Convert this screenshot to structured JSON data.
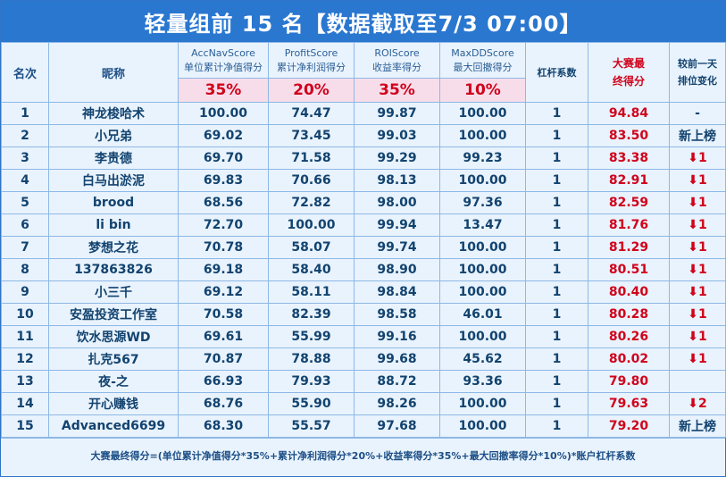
{
  "title": "轻量组前 15 名【数据截取至7/3 07:00】",
  "headers": {
    "rank": "名次",
    "nickname": "昵称",
    "acc_en": "AccNavScore",
    "acc_cn": "单位累计净值得分",
    "acc_pct": "35%",
    "profit_en": "ProfitScore",
    "profit_cn": "累计净利润得分",
    "profit_pct": "20%",
    "roi_en": "ROIScore",
    "roi_cn": "收益率得分",
    "roi_pct": "35%",
    "mdd_en": "MaxDDScore",
    "mdd_cn": "最大回撤得分",
    "mdd_pct": "10%",
    "leverage": "杠杆系数",
    "final_line1": "大赛最",
    "final_line2": "终得分",
    "change_line1": "较前一天",
    "change_line2": "排位变化"
  },
  "rows": [
    {
      "rank": "1",
      "name": "神龙梭哈术",
      "acc": "100.00",
      "profit": "74.47",
      "roi": "99.87",
      "mdd": "100.00",
      "lev": "1",
      "final": "94.84",
      "change": "-",
      "change_type": "none"
    },
    {
      "rank": "2",
      "name": "小兄弟",
      "acc": "69.02",
      "profit": "73.45",
      "roi": "99.03",
      "mdd": "100.00",
      "lev": "1",
      "final": "83.50",
      "change": "新上榜",
      "change_type": "new"
    },
    {
      "rank": "3",
      "name": "李贵德",
      "acc": "69.70",
      "profit": "71.58",
      "roi": "99.29",
      "mdd": "99.23",
      "lev": "1",
      "final": "83.38",
      "change": "⬇1",
      "change_type": "down"
    },
    {
      "rank": "4",
      "name": "白马出淤泥",
      "acc": "69.83",
      "profit": "70.66",
      "roi": "98.13",
      "mdd": "100.00",
      "lev": "1",
      "final": "82.91",
      "change": "⬇1",
      "change_type": "down"
    },
    {
      "rank": "5",
      "name": "brood",
      "acc": "68.56",
      "profit": "72.82",
      "roi": "98.00",
      "mdd": "97.36",
      "lev": "1",
      "final": "82.59",
      "change": "⬇1",
      "change_type": "down"
    },
    {
      "rank": "6",
      "name": "li bin",
      "acc": "72.70",
      "profit": "100.00",
      "roi": "99.94",
      "mdd": "13.47",
      "lev": "1",
      "final": "81.76",
      "change": "⬇1",
      "change_type": "down"
    },
    {
      "rank": "7",
      "name": "梦想之花",
      "acc": "70.78",
      "profit": "58.07",
      "roi": "99.74",
      "mdd": "100.00",
      "lev": "1",
      "final": "81.29",
      "change": "⬇1",
      "change_type": "down"
    },
    {
      "rank": "8",
      "name": "137863826",
      "acc": "69.18",
      "profit": "58.40",
      "roi": "98.90",
      "mdd": "100.00",
      "lev": "1",
      "final": "80.51",
      "change": "⬇1",
      "change_type": "down"
    },
    {
      "rank": "9",
      "name": "小三千",
      "acc": "69.12",
      "profit": "58.11",
      "roi": "98.84",
      "mdd": "100.00",
      "lev": "1",
      "final": "80.40",
      "change": "⬇1",
      "change_type": "down"
    },
    {
      "rank": "10",
      "name": "安盈投资工作室",
      "acc": "70.58",
      "profit": "82.39",
      "roi": "98.58",
      "mdd": "46.01",
      "lev": "1",
      "final": "80.28",
      "change": "⬇1",
      "change_type": "down"
    },
    {
      "rank": "11",
      "name": "饮水思源WD",
      "acc": "69.61",
      "profit": "55.99",
      "roi": "99.16",
      "mdd": "100.00",
      "lev": "1",
      "final": "80.26",
      "change": "⬇1",
      "change_type": "down"
    },
    {
      "rank": "12",
      "name": "扎克567",
      "acc": "70.87",
      "profit": "78.88",
      "roi": "99.68",
      "mdd": "45.62",
      "lev": "1",
      "final": "80.02",
      "change": "⬇1",
      "change_type": "down"
    },
    {
      "rank": "13",
      "name": "夜-之",
      "acc": "66.93",
      "profit": "79.93",
      "roi": "88.72",
      "mdd": "93.36",
      "lev": "1",
      "final": "79.80",
      "change": "",
      "change_type": "none"
    },
    {
      "rank": "14",
      "name": "开心赚钱",
      "acc": "68.76",
      "profit": "55.90",
      "roi": "98.26",
      "mdd": "100.00",
      "lev": "1",
      "final": "79.63",
      "change": "⬇2",
      "change_type": "down"
    },
    {
      "rank": "15",
      "name": "Advanced6699",
      "acc": "68.30",
      "profit": "55.57",
      "roi": "97.68",
      "mdd": "100.00",
      "lev": "1",
      "final": "79.20",
      "change": "新上榜",
      "change_type": "new"
    }
  ],
  "footer": "大赛最终得分=(单位累计净值得分*35%+累计净利润得分*20%+收益率得分*35%+最大回撤率得分*10%)*账户杠杆系数",
  "colors": {
    "header_blue": "#2a77d0",
    "score_red": "#d0021b",
    "text_navy": "#12436f",
    "pct_pink": "#f7ddea"
  }
}
